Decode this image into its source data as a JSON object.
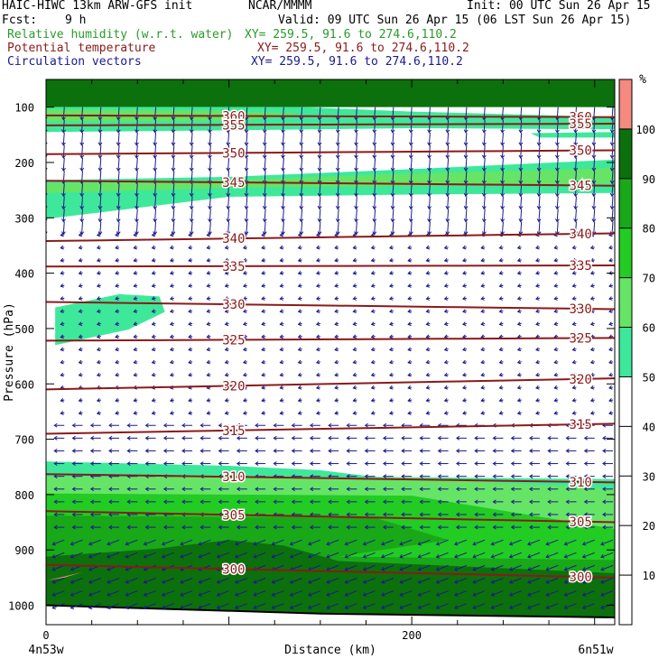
{
  "header": {
    "model": "HAIC-HIWC 13km ARW-GFS init",
    "center": "NCAR/MMMM",
    "init": "Init: 00 UTC Sun 26 Apr 15",
    "fcst_label": "Fcst:",
    "fcst_value": "9 h",
    "valid": "Valid: 09 UTC Sun 26 Apr 15 (06 LST Sun 26 Apr 15)",
    "field1": "Relative humidity (w.r.t. water)",
    "field1_xy": "XY= 259.5, 91.6 to 274.6,110.2",
    "field2": "Potential temperature",
    "field2_xy": "XY= 259.5, 91.6 to 274.6,110.2",
    "field3": "Circulation vectors",
    "field3_xy": "XY= 259.5, 91.6 to 274.6,110.2"
  },
  "colors": {
    "rh_field": "#2a9a2a",
    "theta_field": "#8b1a1a",
    "vector_field": "#1a1a8c"
  },
  "chart_data": {
    "type": "cross-section",
    "xlabel": "Distance (km)",
    "ylabel": "Pressure (hPa)",
    "x_ticks": [
      0,
      200
    ],
    "x_range_km": [
      0,
      311
    ],
    "y_ticks": [
      100,
      200,
      300,
      400,
      500,
      600,
      700,
      800,
      900,
      1000
    ],
    "y_range_hpa": [
      50,
      1035
    ],
    "y_scale": "linear",
    "left_endpoint": "4n53w",
    "right_endpoint": "6n51w",
    "rh_colorbar": {
      "unit": "%",
      "levels": [
        10,
        20,
        30,
        40,
        50,
        60,
        70,
        80,
        90,
        100
      ],
      "bands": [
        {
          "from": 0,
          "to": 50,
          "color": "#ffffff"
        },
        {
          "from": 50,
          "to": 60,
          "color": "#3ee89a"
        },
        {
          "from": 60,
          "to": 70,
          "color": "#66e466"
        },
        {
          "from": 70,
          "to": 80,
          "color": "#22cc22"
        },
        {
          "from": 80,
          "to": 90,
          "color": "#18a818"
        },
        {
          "from": 90,
          "to": 100,
          "color": "#0c700c"
        },
        {
          "from": 100,
          "to": 110,
          "color": "#f48a80"
        }
      ]
    },
    "theta_contours": [
      {
        "value": 360,
        "left_p": 115,
        "right_p": 118
      },
      {
        "value": 355,
        "left_p": 133,
        "right_p": 130
      },
      {
        "value": 350,
        "left_p": 185,
        "right_p": 178
      },
      {
        "value": 345,
        "left_p": 233,
        "right_p": 242
      },
      {
        "value": 340,
        "left_p": 342,
        "right_p": 328
      },
      {
        "value": 335,
        "left_p": 388,
        "right_p": 386
      },
      {
        "value": 330,
        "left_p": 452,
        "right_p": 465
      },
      {
        "value": 325,
        "left_p": 522,
        "right_p": 517
      },
      {
        "value": 320,
        "left_p": 610,
        "right_p": 590
      },
      {
        "value": 315,
        "left_p": 690,
        "right_p": 672
      },
      {
        "value": 310,
        "left_p": 763,
        "right_p": 778
      },
      {
        "value": 305,
        "left_p": 830,
        "right_p": 850
      },
      {
        "value": 300,
        "left_p": 927,
        "right_p": 950
      }
    ],
    "theta_labels": [
      360,
      355,
      350,
      345,
      340,
      335,
      330,
      325,
      320,
      315,
      310,
      305,
      300
    ]
  }
}
